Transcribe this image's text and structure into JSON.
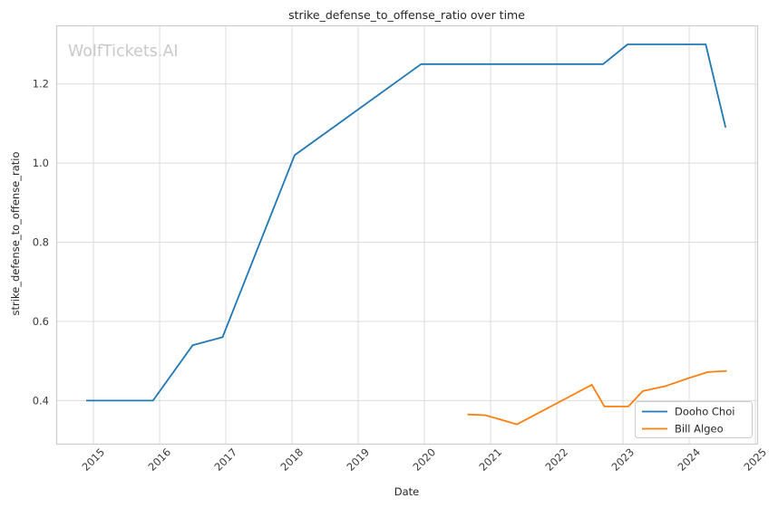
{
  "watermark": {
    "text": "WolfTickets.AI",
    "color": "#c9c9c9"
  },
  "chart_data": {
    "type": "line",
    "title": "strike_defense_to_offense_ratio over time",
    "xlabel": "Date",
    "ylabel": "strike_defense_to_offense_ratio",
    "x_ticks": [
      2015,
      2016,
      2017,
      2018,
      2019,
      2020,
      2021,
      2022,
      2023,
      2024,
      2025
    ],
    "y_ticks": [
      0.4,
      0.6,
      0.8,
      1.0,
      1.2
    ],
    "xlim": [
      2014.438,
      2025.027
    ],
    "ylim": [
      0.291,
      1.348
    ],
    "grid": true,
    "legend": {
      "position": "lower right",
      "entries": [
        "Dooho Choi",
        "Bill Algeo"
      ]
    },
    "series": [
      {
        "name": "Dooho Choi",
        "color": "#1f77b4",
        "x": [
          2014.89,
          2015.9,
          2016.5,
          2016.95,
          2018.04,
          2019.95,
          2022.7,
          2023.07,
          2024.25,
          2024.55
        ],
        "y": [
          0.4,
          0.4,
          0.54,
          0.56,
          1.02,
          1.25,
          1.25,
          1.3,
          1.3,
          1.09
        ]
      },
      {
        "name": "Bill Algeo",
        "color": "#ff7f0e",
        "x": [
          2020.65,
          2020.92,
          2021.4,
          2022.53,
          2022.72,
          2023.08,
          2023.3,
          2023.65,
          2024.0,
          2024.28,
          2024.57
        ],
        "y": [
          0.365,
          0.363,
          0.34,
          0.44,
          0.385,
          0.385,
          0.424,
          0.437,
          0.457,
          0.472,
          0.475
        ]
      }
    ],
    "colors": {
      "grid": "#dcdcdc",
      "spine": "#cccccc",
      "title_text": "#262626",
      "tick_text": "#3a3a3a"
    }
  }
}
